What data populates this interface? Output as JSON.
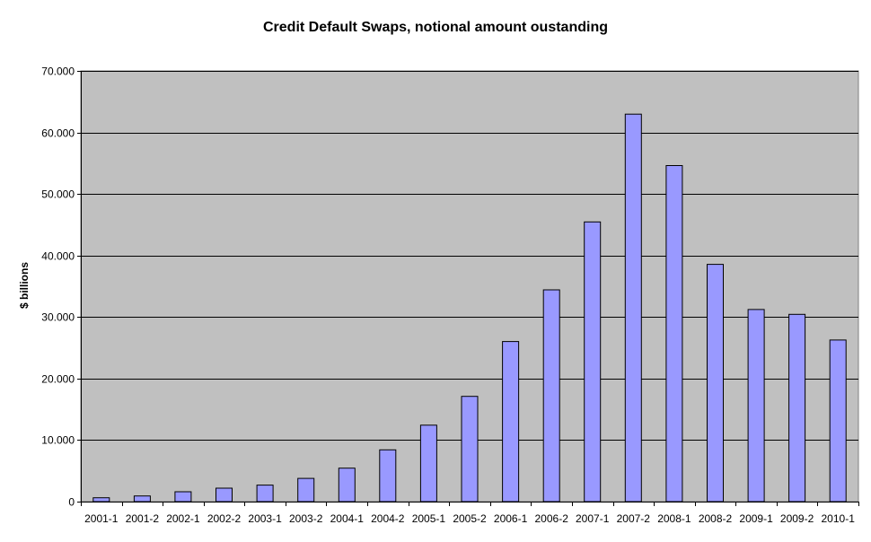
{
  "chart_data": {
    "type": "bar",
    "title": "Credit Default Swaps, notional amount oustanding",
    "xlabel": "",
    "ylabel": "$ billions",
    "ylim": [
      0,
      70000
    ],
    "yticks": [
      0,
      10000,
      20000,
      30000,
      40000,
      50000,
      60000,
      70000
    ],
    "ytick_labels": [
      "0",
      "10.000",
      "20.000",
      "30.000",
      "40.000",
      "50.000",
      "60.000",
      "70.000"
    ],
    "categories": [
      "2001-1",
      "2001-2",
      "2002-1",
      "2002-2",
      "2003-1",
      "2003-2",
      "2004-1",
      "2004-2",
      "2005-1",
      "2005-2",
      "2006-1",
      "2006-2",
      "2007-1",
      "2007-2",
      "2008-1",
      "2008-2",
      "2009-1",
      "2009-2",
      "2010-1"
    ],
    "values": [
      630,
      920,
      1600,
      2190,
      2690,
      3780,
      5440,
      8420,
      12430,
      17100,
      26010,
      34420,
      45460,
      62970,
      54610,
      38560,
      31220,
      30430,
      26270
    ],
    "grid": true,
    "legend": false,
    "colors": {
      "plot_background": "#c0c0c0",
      "bar_fill": "#9999ff",
      "bar_stroke": "#000000",
      "gridline": "#000000"
    }
  }
}
